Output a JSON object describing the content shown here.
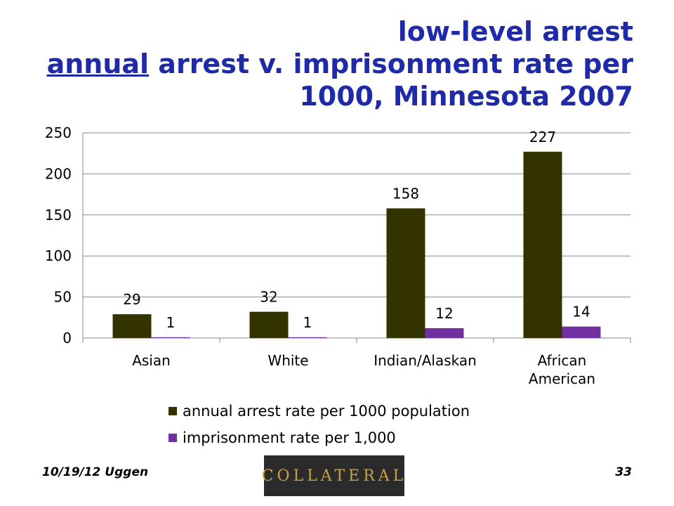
{
  "title": {
    "line1": "low-level arrest",
    "line2_underlined": "annual",
    "line2_rest": " arrest v. imprisonment rate per",
    "line3": "1000, Minnesota 2007"
  },
  "chart_data": {
    "type": "bar",
    "categories": [
      "Asian",
      "White",
      "Indian/Alaskan",
      "African American"
    ],
    "category_lines": [
      [
        "Asian"
      ],
      [
        "White"
      ],
      [
        "Indian/Alaskan"
      ],
      [
        "African",
        "American"
      ]
    ],
    "series": [
      {
        "name": "annual arrest rate per 1000 population",
        "values": [
          29,
          32,
          158,
          227
        ],
        "color": "#333300"
      },
      {
        "name": "imprisonment rate per 1,000",
        "values": [
          1,
          1,
          12,
          14
        ],
        "color": "#7030A0"
      }
    ],
    "ylim": [
      0,
      250
    ],
    "yticks": [
      0,
      50,
      100,
      150,
      200,
      250
    ],
    "grid": true,
    "legend_position": "bottom"
  },
  "footer": {
    "left": "10/19/12 Uggen",
    "right": "33",
    "logo_text": "COLLATERAL"
  }
}
